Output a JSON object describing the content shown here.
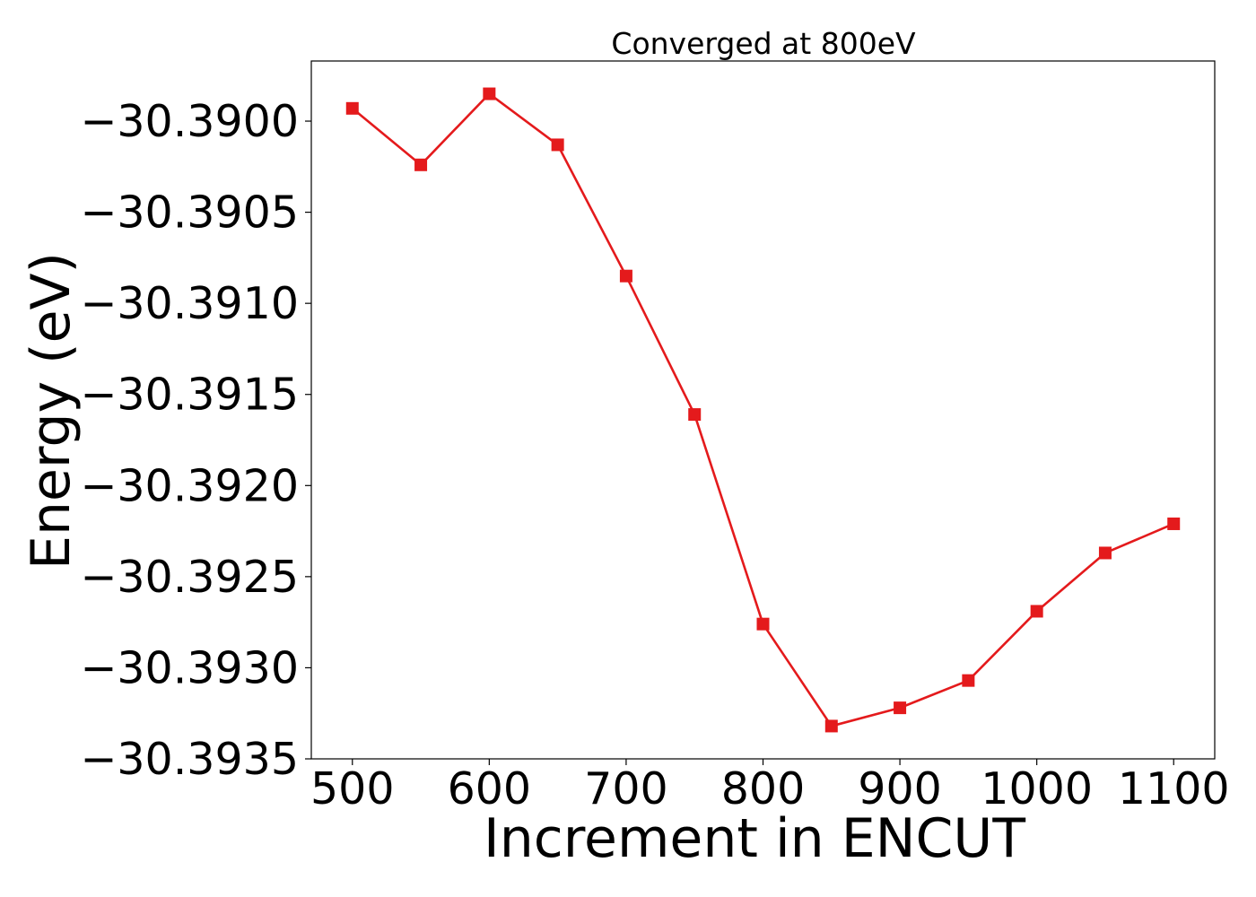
{
  "chart_data": {
    "type": "line",
    "title": "Converged at 800eV",
    "xlabel": "Increment in ENCUT",
    "ylabel": "Energy (eV)",
    "xlim": [
      470,
      1130
    ],
    "ylim": [
      -30.3935,
      -30.38967
    ],
    "x_ticks": [
      500,
      600,
      700,
      800,
      900,
      1000,
      1100
    ],
    "x_tick_labels": [
      "500",
      "600",
      "700",
      "800",
      "900",
      "1000",
      "1100"
    ],
    "y_ticks": [
      -30.39,
      -30.3905,
      -30.391,
      -30.3915,
      -30.392,
      -30.3925,
      -30.393,
      -30.3935
    ],
    "y_tick_labels": [
      "−30.3900",
      "−30.3905",
      "−30.3910",
      "−30.3915",
      "−30.3920",
      "−30.3925",
      "−30.3930",
      "−30.3935"
    ],
    "grid": false,
    "series": [
      {
        "color": "#e41a1c",
        "marker": "square",
        "x": [
          500,
          550,
          600,
          650,
          700,
          750,
          800,
          850,
          900,
          950,
          1000,
          1050,
          1100
        ],
        "y": [
          -30.38993,
          -30.39024,
          -30.38985,
          -30.39013,
          -30.39085,
          -30.39161,
          -30.39276,
          -30.39332,
          -30.39322,
          -30.39307,
          -30.39269,
          -30.39237,
          -30.39221
        ]
      }
    ]
  }
}
